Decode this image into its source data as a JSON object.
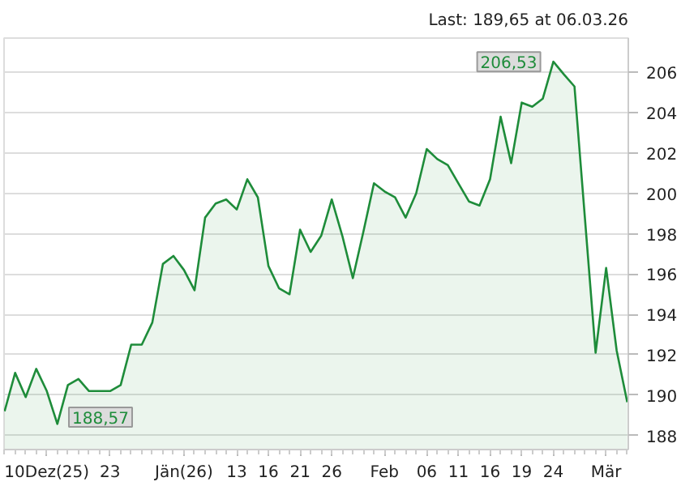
{
  "chart_data": {
    "type": "area",
    "annotations": [
      "Last: 189,65 at 06.03.26",
      {
        "text": "206,53",
        "x": "24",
        "y": 206.53
      },
      "188,57"
    ],
    "categories": [
      null,
      null,
      null,
      null,
      "10Dez(25)",
      null,
      null,
      null,
      null,
      null,
      "23",
      null,
      null,
      null,
      null,
      null,
      null,
      "Jän(26)",
      null,
      null,
      null,
      null,
      "13",
      null,
      null,
      "16",
      null,
      null,
      "21",
      null,
      null,
      "26",
      null,
      null,
      null,
      null,
      "Feb",
      null,
      null,
      null,
      "06",
      null,
      null,
      "11",
      null,
      null,
      "16",
      null,
      null,
      "19",
      null,
      null,
      "24",
      null,
      null,
      null,
      null,
      "Mär",
      null,
      null
    ],
    "series": [
      {
        "color": "#1e8c3a",
        "values": [
          189.2,
          191.1,
          189.9,
          191.3,
          190.2,
          188.57,
          190.5,
          190.8,
          190.2,
          190.2,
          190.2,
          190.5,
          192.5,
          192.5,
          193.6,
          196.5,
          196.9,
          196.2,
          195.2,
          198.8,
          199.5,
          199.7,
          199.2,
          200.7,
          199.8,
          196.4,
          195.3,
          195.0,
          198.2,
          197.1,
          197.9,
          199.7,
          197.9,
          195.8,
          198.1,
          200.5,
          200.1,
          199.8,
          198.8,
          200.0,
          202.2,
          201.7,
          201.4,
          200.5,
          199.6,
          199.4,
          200.7,
          203.8,
          201.5,
          204.5,
          204.3,
          204.7,
          206.53,
          205.9,
          205.3,
          198.7,
          192.1,
          196.3,
          192.2,
          189.65
        ]
      }
    ],
    "ylim": [
      187.3,
      207.7
    ],
    "yticks": [
      188,
      190,
      192,
      194,
      196,
      198,
      200,
      202,
      204,
      206
    ],
    "grid": "y"
  }
}
